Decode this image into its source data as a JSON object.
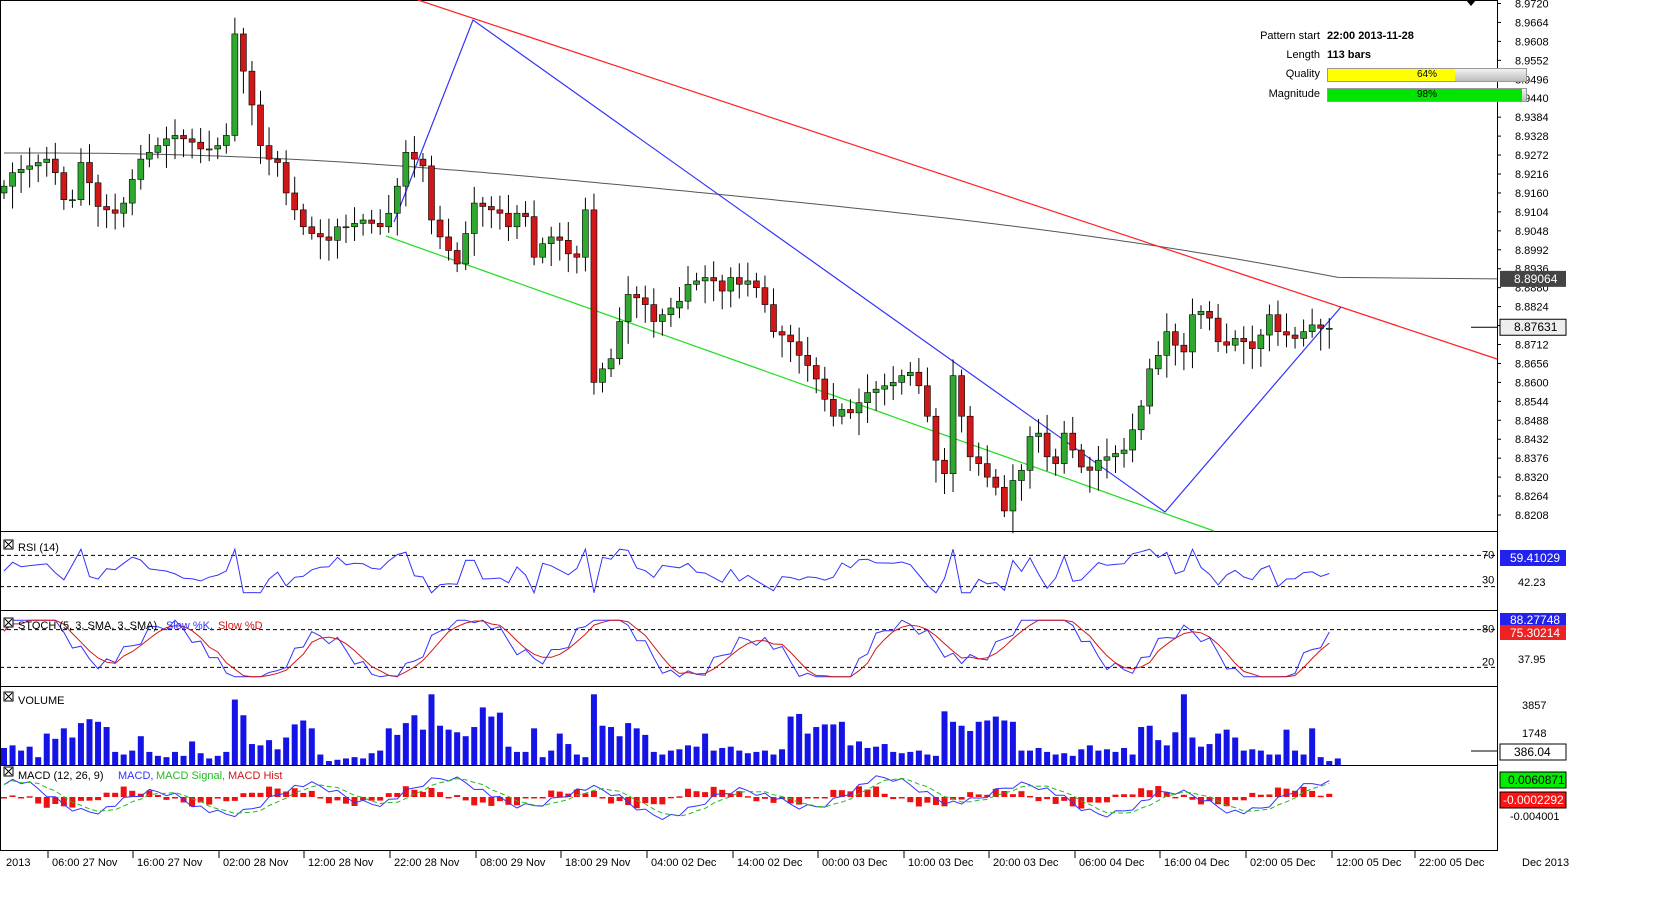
{
  "info": {
    "pattern_start_label": "Pattern start",
    "pattern_start_value": "22:00 2013-11-28",
    "length_label": "Length",
    "length_value": "113 bars",
    "quality_label": "Quality",
    "quality_pct": 64,
    "quality_text": "64%",
    "quality_color": "#ffff00",
    "magnitude_label": "Magnitude",
    "magnitude_pct": 98,
    "magnitude_text": "98%",
    "magnitude_color": "#00e600"
  },
  "panels": {
    "rsi_label": "RSI (14)",
    "rsi_value": "59.41029",
    "rsi_mid": "42.23",
    "rsi_hi": "70",
    "rsi_lo": "30",
    "stoch_label": "STOCH (5, 3, SMA, 3, SMA)",
    "stoch_k_label": "Slow %K,",
    "stoch_d_label": "Slow %D",
    "stoch_k_value": "88.27748",
    "stoch_d_value": "75.30214",
    "stoch_mid": "37.95",
    "stoch_hi": "80",
    "stoch_lo": "20",
    "volume_label": "VOLUME",
    "volume_value": "386.04",
    "volume_t1": "3857",
    "volume_t2": "1748",
    "macd_label": "MACD (12, 26, 9)",
    "macd_l": "MACD,",
    "macd_s": "MACD Signal,",
    "macd_h": "MACD Hist",
    "macd_value": "0.0060871",
    "macd_hist_value": "-0.0002292",
    "macd_tick": "-0.004001"
  },
  "colors": {
    "bull": "#2fa82f",
    "bear": "#d01818",
    "blue": "#3333ff",
    "red_line": "#ff2020",
    "green_line": "#22dd22",
    "ma": "#555555"
  },
  "chart_data": {
    "type": "candlestick",
    "price_axis": [
      8.972,
      8.9664,
      8.9608,
      8.9552,
      8.9496,
      8.944,
      8.9384,
      8.9328,
      8.9272,
      8.9216,
      8.916,
      8.9104,
      8.9048,
      8.8992,
      8.8936,
      8.888,
      8.8824,
      8.8768,
      8.8712,
      8.8656,
      8.86,
      8.8544,
      8.8488,
      8.8432,
      8.8376,
      8.832,
      8.8264,
      8.8208
    ],
    "price_tick_labels": [
      "8.9720",
      "8.9664",
      "8.9608",
      "8.9552",
      "8.9496",
      "8.9440",
      "8.9384",
      "8.9328",
      "8.9272",
      "8.9216",
      "8.9160",
      "8.9104",
      "8.9048",
      "8.8992",
      "8.8936",
      "8.8880",
      "8.8824",
      "8.8768",
      "8.8712",
      "8.8656",
      "8.8600",
      "8.8544",
      "8.8488",
      "8.8432",
      "8.8376",
      "8.8320",
      "8.8264",
      "8.8208"
    ],
    "current_price": "8.87631",
    "ma_value": "8.89064",
    "x_labels": [
      "2013",
      "06:00 27 Nov",
      "16:00 27 Nov",
      "02:00 28 Nov",
      "12:00 28 Nov",
      "22:00 28 Nov",
      "08:00 29 Nov",
      "18:00 29 Nov",
      "04:00 02 Dec",
      "14:00 02 Dec",
      "00:00 03 Dec",
      "10:00 03 Dec",
      "20:00 03 Dec",
      "06:00 04 Dec",
      "16:00 04 Dec",
      "02:00 05 Dec",
      "12:00 05 Dec",
      "22:00 05 Dec",
      "Dec 2013"
    ],
    "closes": [
      8.918,
      8.922,
      8.923,
      8.924,
      8.925,
      8.926,
      8.922,
      8.914,
      8.914,
      8.925,
      8.919,
      8.912,
      8.911,
      8.91,
      8.913,
      8.92,
      8.926,
      8.928,
      8.93,
      8.932,
      8.933,
      8.932,
      8.931,
      8.929,
      8.929,
      8.93,
      8.933,
      8.963,
      8.952,
      8.942,
      8.93,
      8.926,
      8.925,
      8.916,
      8.911,
      8.906,
      8.904,
      8.903,
      8.902,
      8.906,
      8.906,
      8.907,
      8.908,
      8.907,
      8.906,
      8.91,
      8.918,
      8.928,
      8.926,
      8.924,
      8.908,
      8.903,
      8.899,
      8.895,
      8.904,
      8.913,
      8.912,
      8.911,
      8.91,
      8.906,
      8.91,
      8.909,
      8.897,
      8.901,
      8.903,
      8.902,
      8.898,
      8.897,
      8.911,
      8.86,
      8.864,
      8.867,
      8.878,
      8.886,
      8.885,
      8.883,
      8.878,
      8.88,
      8.882,
      8.884,
      8.889,
      8.89,
      8.891,
      8.89,
      8.887,
      8.891,
      8.889,
      8.89,
      8.888,
      8.883,
      8.875,
      8.874,
      8.872,
      8.868,
      8.865,
      8.861,
      8.855,
      8.85,
      8.852,
      8.851,
      8.854,
      8.857,
      8.858,
      8.859,
      8.86,
      8.862,
      8.863,
      8.859,
      8.85,
      8.837,
      8.833,
      8.862,
      8.85,
      8.838,
      8.836,
      8.832,
      8.829,
      8.822,
      8.831,
      8.834,
      8.844,
      8.845,
      8.838,
      8.836,
      8.845,
      8.84,
      8.835,
      8.834,
      8.837,
      8.838,
      8.839,
      8.84,
      8.846,
      8.853,
      8.864,
      8.868,
      8.875,
      8.871,
      8.869,
      8.88,
      8.881,
      8.879,
      8.872,
      8.871,
      8.873,
      8.872,
      8.87,
      8.874,
      8.88,
      8.875,
      8.874,
      8.873,
      8.875,
      8.877,
      8.876,
      8.876
    ],
    "volume": [
      1300,
      1500,
      1100,
      1400,
      600,
      2400,
      2000,
      2800,
      2100,
      3200,
      3500,
      3300,
      2900,
      1000,
      800,
      1100,
      2200,
      1000,
      700,
      600,
      1000,
      700,
      1800,
      900,
      500,
      700,
      1000,
      5000,
      3800,
      1600,
      1500,
      1900,
      1200,
      2100,
      3100,
      3400,
      2800,
      800,
      300,
      400,
      500,
      600,
      500,
      900,
      1100,
      2800,
      2300,
      3200,
      3800,
      2700,
      5400,
      3000,
      2700,
      2500,
      2200,
      2900,
      4400,
      3700,
      4000,
      1400,
      1000,
      1000,
      2800,
      600,
      1100,
      2400,
      1600,
      800,
      600,
      5400,
      3000,
      2900,
      2200,
      3200,
      2800,
      2300,
      1000,
      800,
      1100,
      1200,
      1500,
      1400,
      2400,
      1100,
      1300,
      1400,
      1100,
      900,
      1000,
      1100,
      800,
      1200,
      3700,
      3900,
      2400,
      2900,
      3100,
      3100,
      3300,
      1500,
      1800,
      1300,
      1400,
      1600,
      1000,
      900,
      1000,
      1100,
      800,
      700,
      4100,
      3300,
      3000,
      2600,
      3300,
      3400,
      3700,
      3400,
      3300,
      1100,
      1100,
      1300,
      1000,
      800,
      900,
      700,
      1200,
      1500,
      1100,
      1200,
      1000,
      1300,
      800,
      2900,
      3000,
      1900,
      1500,
      2500,
      5400,
      2100,
      1400,
      1600,
      2400,
      2700,
      2100,
      1100,
      1200,
      1100,
      800,
      800,
      2700,
      1100,
      800,
      2800,
      600,
      300,
      500
    ]
  }
}
